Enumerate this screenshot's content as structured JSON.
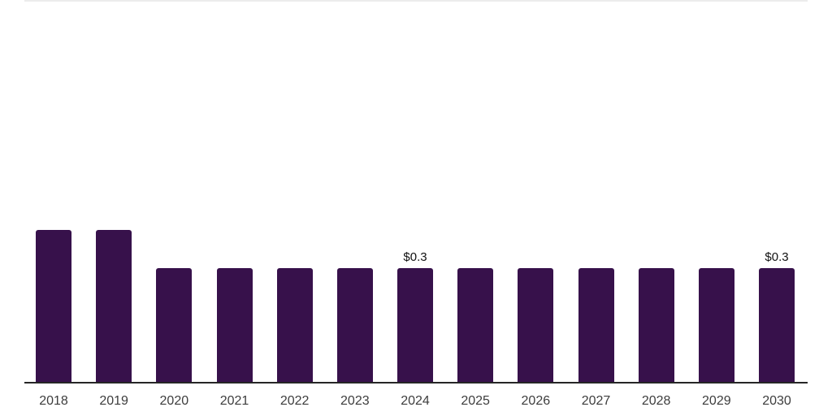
{
  "chart_data": {
    "type": "bar",
    "title": "",
    "xlabel": "",
    "ylabel": "",
    "categories": [
      "2018",
      "2019",
      "2020",
      "2021",
      "2022",
      "2023",
      "2024",
      "2025",
      "2026",
      "2027",
      "2028",
      "2029",
      "2030"
    ],
    "values": [
      0.4,
      0.4,
      0.3,
      0.3,
      0.3,
      0.3,
      0.3,
      0.3,
      0.3,
      0.3,
      0.3,
      0.3,
      0.3
    ],
    "value_labels": [
      "",
      "",
      "",
      "",
      "",
      "",
      "$0.3",
      "",
      "",
      "",
      "",
      "",
      "$0.3"
    ],
    "currency_unit": "$",
    "ylim": [
      0,
      1.0
    ],
    "grid": "single top hairline, no other gridlines",
    "legend": "none",
    "axis": "x-axis baseline only, no y-axis ticks"
  },
  "colors": {
    "bar": "#37114B",
    "axis_line": "#262626",
    "tick_label": "#3d3d3d",
    "value_label": "#111111",
    "top_gridline": "#ececec",
    "background": "#ffffff"
  }
}
